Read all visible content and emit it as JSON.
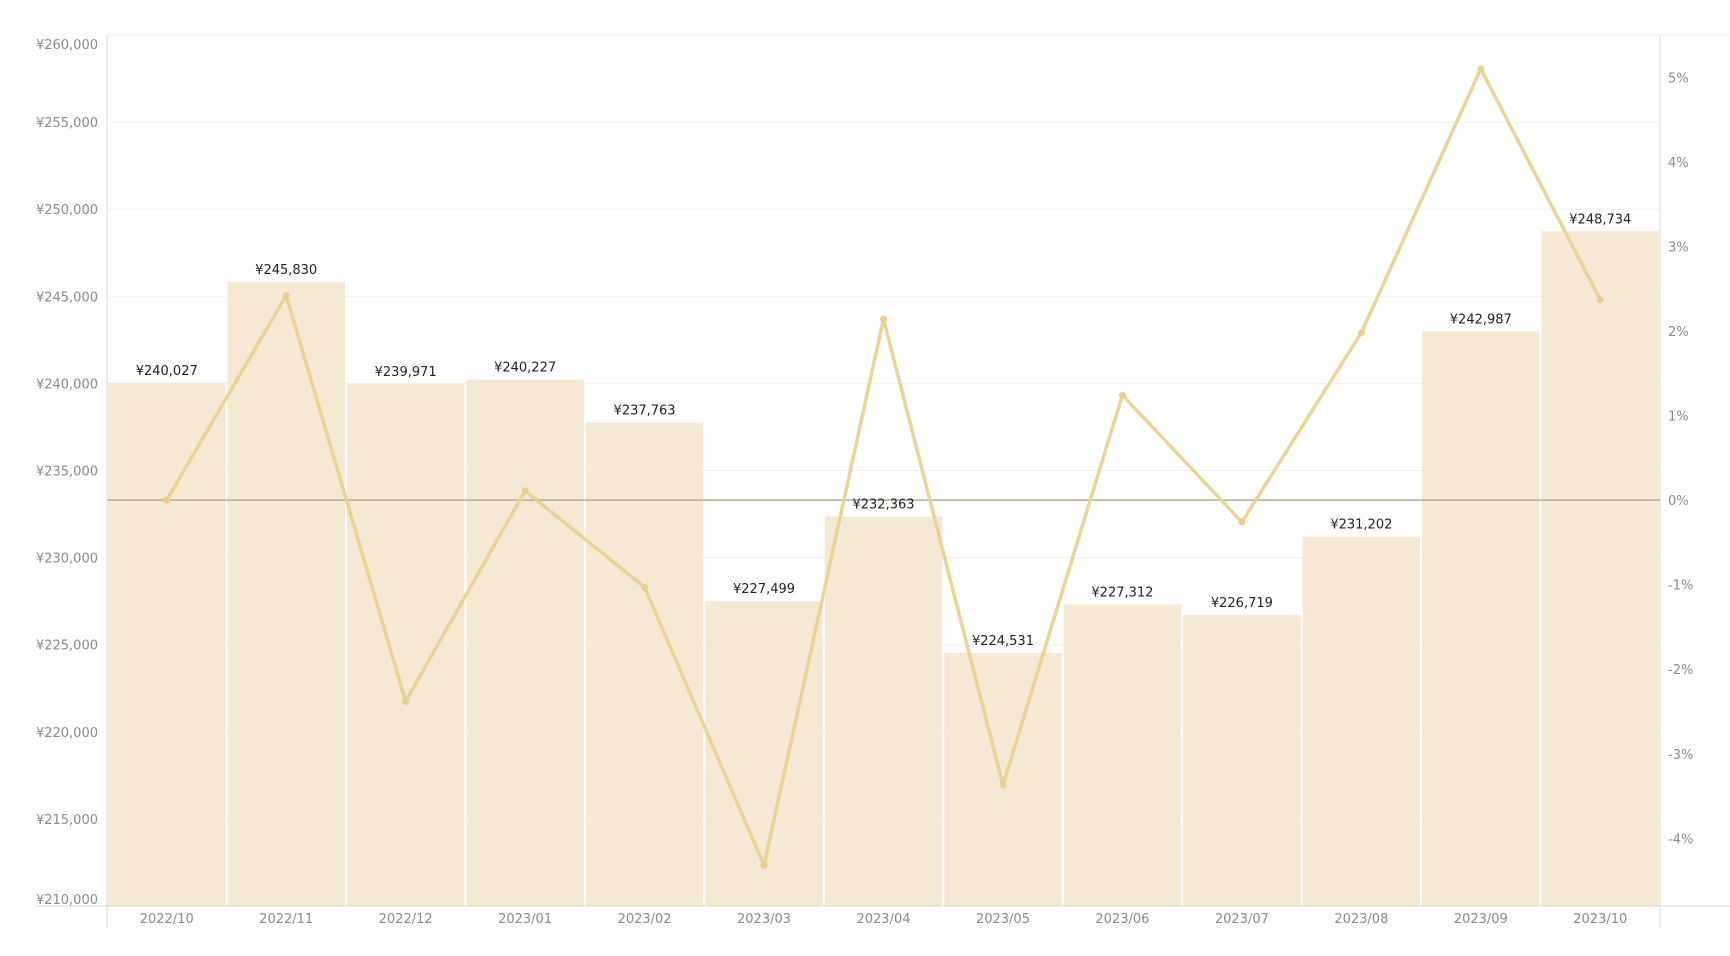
{
  "chart_data": {
    "type": "bar",
    "title": "",
    "xlabel": "",
    "ylabel": "",
    "categories": [
      "2022/10",
      "2022/11",
      "2022/12",
      "2023/01",
      "2023/02",
      "2023/03",
      "2023/04",
      "2023/05",
      "2023/06",
      "2023/07",
      "2023/08",
      "2023/09",
      "2023/10"
    ],
    "series": [
      {
        "type": "bar",
        "axis": "left",
        "values": [
          240027,
          245830,
          239971,
          240227,
          237763,
          227499,
          232363,
          224531,
          227312,
          226719,
          231202,
          242987,
          248734
        ],
        "labels": [
          "¥240,027",
          "¥245,830",
          "¥239,971",
          "¥240,227",
          "¥237,763",
          "¥227,499",
          "¥232,363",
          "¥224,531",
          "¥227,312",
          "¥226,719",
          "¥231,202",
          "¥242,987",
          "¥248,734"
        ]
      },
      {
        "type": "line",
        "axis": "right",
        "values": [
          0.0,
          2.42,
          -2.38,
          0.11,
          -1.03,
          -4.32,
          2.14,
          -3.37,
          1.24,
          -0.26,
          1.98,
          5.1,
          2.37
        ]
      }
    ],
    "ylim": [
      210000,
      260000
    ],
    "y_ticks": [
      "¥260,000",
      "¥255,000",
      "¥250,000",
      "¥245,000",
      "¥240,000",
      "¥235,000",
      "¥230,000",
      "¥225,000",
      "¥220,000",
      "¥215,000",
      "¥210,000"
    ],
    "y_tick_values": [
      260000,
      255000,
      250000,
      245000,
      240000,
      235000,
      230000,
      225000,
      220000,
      215000,
      210000
    ],
    "y2lim": [
      -4.8,
      5.5
    ],
    "y2_ticks": [
      "5%",
      "4%",
      "3%",
      "2%",
      "1%",
      "0%",
      "-1%",
      "-2%",
      "-3%",
      "-4%"
    ],
    "y2_tick_values": [
      5,
      4,
      3,
      2,
      1,
      0,
      -1,
      -2,
      -3,
      -4
    ],
    "reference_line": 0,
    "grid": true,
    "colors": {
      "bar": "#f5e9d4",
      "line": "#e8d08e",
      "zero_line": "#b5ab90",
      "grid": "#f0f0f0",
      "axis": "#d9d9d9"
    }
  }
}
